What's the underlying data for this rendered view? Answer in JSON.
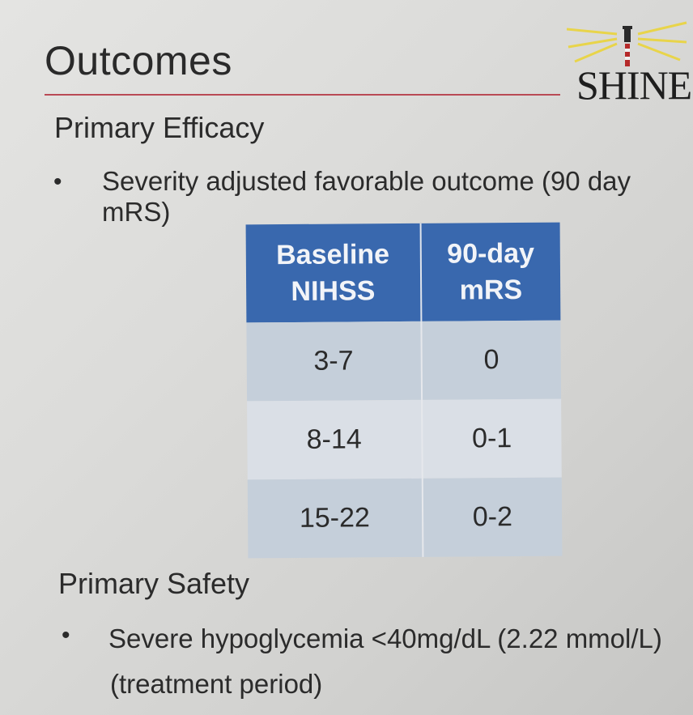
{
  "title": "Outcomes",
  "logo": {
    "text": "SHINE"
  },
  "primary_efficacy": {
    "heading": "Primary Efficacy",
    "bullet": "Severity adjusted favorable outcome (90 day mRS)"
  },
  "table": {
    "headers": [
      [
        "Baseline",
        "NIHSS"
      ],
      [
        "90-day",
        "mRS"
      ]
    ],
    "rows": [
      [
        "3-7",
        "0"
      ],
      [
        "8-14",
        "0-1"
      ],
      [
        "15-22",
        "0-2"
      ]
    ]
  },
  "primary_safety": {
    "heading": "Primary Safety",
    "bullet_line1": "Severe hypoglycemia <40mg/dL (2.22 mmol/L)",
    "bullet_line2": "(treatment period)"
  },
  "colors": {
    "header_blue": "#3968ae",
    "title_rule": "#b94a55",
    "row_dark": "#c5cfda",
    "row_light": "#dadfe6"
  }
}
